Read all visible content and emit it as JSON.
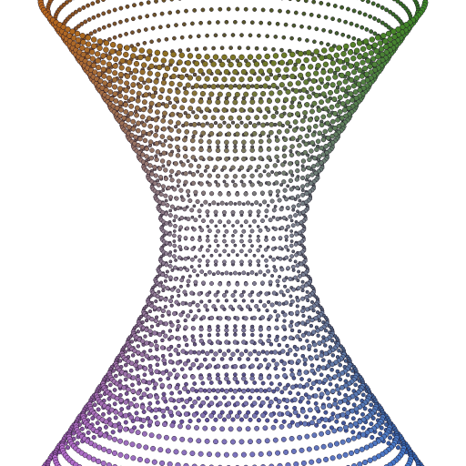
{
  "scene": {
    "subject": "hyperboloid-of-one-sheet",
    "rendering": "point-cloud",
    "background_color": "#ffffff",
    "dot_outline_color": "#1a1020",
    "gradient_colors": {
      "top_left": "#c4621e",
      "top_right": "#2f8a2a",
      "bottom_left": "#c86ad6",
      "bottom_right": "#2f7ad6",
      "waist": "#8c88a0"
    }
  }
}
